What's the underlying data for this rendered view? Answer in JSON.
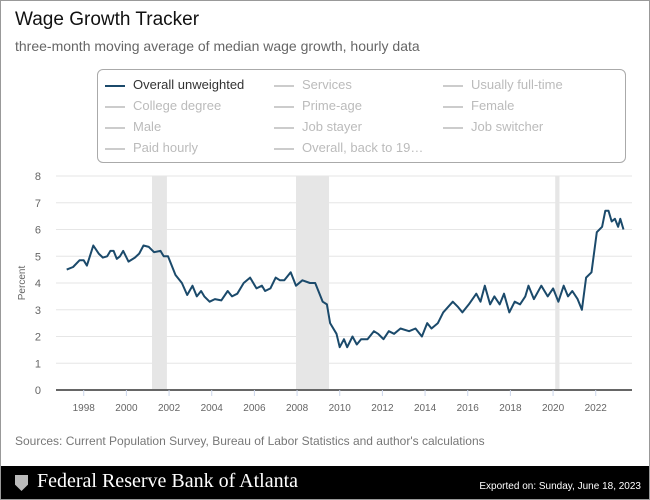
{
  "title": "Wage Growth Tracker",
  "subtitle": "three-month moving average of median wage growth, hourly data",
  "legend": [
    {
      "label": "Overall unweighted",
      "active": true
    },
    {
      "label": "Services",
      "active": false
    },
    {
      "label": "Usually full-time",
      "active": false
    },
    {
      "label": "College degree",
      "active": false
    },
    {
      "label": "Prime-age",
      "active": false
    },
    {
      "label": "Female",
      "active": false
    },
    {
      "label": "Male",
      "active": false
    },
    {
      "label": "Job stayer",
      "active": false
    },
    {
      "label": "Job switcher",
      "active": false
    },
    {
      "label": "Paid hourly",
      "active": false
    },
    {
      "label": "Overall, back to 19…",
      "active": false
    }
  ],
  "sources": "Sources: Current Population Survey, Bureau of Labor Statistics and author's calculations",
  "footer": {
    "logo": "Federal Reserve Bank of Atlanta",
    "exported": "Exported on: Sunday, June 18, 2023"
  },
  "chart_data": {
    "type": "line",
    "ylabel": "Percent",
    "ylim": [
      0,
      8
    ],
    "yticks": [
      "0",
      "1",
      "2",
      "3",
      "4",
      "5",
      "6",
      "7",
      "8"
    ],
    "xlim": [
      1996.7,
      2023.7
    ],
    "xticks": [
      "1998",
      "2000",
      "2002",
      "2004",
      "2006",
      "2008",
      "2010",
      "2012",
      "2014",
      "2016",
      "2018",
      "2020",
      "2022"
    ],
    "grid": true,
    "line_color": "#1b4a6b",
    "recessions": [
      [
        2001.2,
        2001.9
      ],
      [
        2007.95,
        2009.5
      ],
      [
        2020.1,
        2020.3
      ]
    ],
    "series": [
      {
        "name": "Overall unweighted",
        "points": [
          [
            1997.2,
            4.5
          ],
          [
            1997.5,
            4.6
          ],
          [
            1997.8,
            4.85
          ],
          [
            1998.0,
            4.85
          ],
          [
            1998.15,
            4.65
          ],
          [
            1998.45,
            5.4
          ],
          [
            1998.7,
            5.1
          ],
          [
            1998.9,
            4.95
          ],
          [
            1999.1,
            5.0
          ],
          [
            1999.25,
            5.2
          ],
          [
            1999.4,
            5.2
          ],
          [
            1999.55,
            4.9
          ],
          [
            1999.7,
            5.0
          ],
          [
            1999.85,
            5.2
          ],
          [
            2000.1,
            4.8
          ],
          [
            2000.4,
            4.95
          ],
          [
            2000.6,
            5.1
          ],
          [
            2000.8,
            5.4
          ],
          [
            2001.05,
            5.35
          ],
          [
            2001.3,
            5.15
          ],
          [
            2001.6,
            5.2
          ],
          [
            2001.75,
            5.0
          ],
          [
            2001.95,
            5.0
          ],
          [
            2002.15,
            4.6
          ],
          [
            2002.3,
            4.3
          ],
          [
            2002.6,
            4.0
          ],
          [
            2002.85,
            3.55
          ],
          [
            2003.1,
            3.9
          ],
          [
            2003.3,
            3.5
          ],
          [
            2003.5,
            3.7
          ],
          [
            2003.65,
            3.5
          ],
          [
            2003.9,
            3.3
          ],
          [
            2004.15,
            3.4
          ],
          [
            2004.45,
            3.35
          ],
          [
            2004.75,
            3.7
          ],
          [
            2004.95,
            3.5
          ],
          [
            2005.2,
            3.6
          ],
          [
            2005.5,
            4.0
          ],
          [
            2005.8,
            4.2
          ],
          [
            2006.1,
            3.8
          ],
          [
            2006.35,
            3.9
          ],
          [
            2006.5,
            3.7
          ],
          [
            2006.75,
            3.8
          ],
          [
            2007.0,
            4.2
          ],
          [
            2007.2,
            4.1
          ],
          [
            2007.4,
            4.1
          ],
          [
            2007.7,
            4.4
          ],
          [
            2007.95,
            3.9
          ],
          [
            2008.25,
            4.1
          ],
          [
            2008.6,
            4.0
          ],
          [
            2008.85,
            4.0
          ],
          [
            2009.0,
            3.7
          ],
          [
            2009.2,
            3.3
          ],
          [
            2009.4,
            3.2
          ],
          [
            2009.55,
            2.5
          ],
          [
            2009.85,
            2.1
          ],
          [
            2010.0,
            1.6
          ],
          [
            2010.2,
            1.9
          ],
          [
            2010.35,
            1.6
          ],
          [
            2010.6,
            2.0
          ],
          [
            2010.8,
            1.7
          ],
          [
            2011.0,
            1.9
          ],
          [
            2011.3,
            1.9
          ],
          [
            2011.6,
            2.2
          ],
          [
            2011.8,
            2.1
          ],
          [
            2012.05,
            1.9
          ],
          [
            2012.3,
            2.2
          ],
          [
            2012.55,
            2.1
          ],
          [
            2012.85,
            2.3
          ],
          [
            2013.25,
            2.2
          ],
          [
            2013.55,
            2.3
          ],
          [
            2013.85,
            2.0
          ],
          [
            2014.1,
            2.5
          ],
          [
            2014.3,
            2.3
          ],
          [
            2014.6,
            2.5
          ],
          [
            2014.85,
            2.9
          ],
          [
            2015.3,
            3.3
          ],
          [
            2015.55,
            3.1
          ],
          [
            2015.75,
            2.9
          ],
          [
            2016.05,
            3.2
          ],
          [
            2016.4,
            3.6
          ],
          [
            2016.6,
            3.3
          ],
          [
            2016.8,
            3.9
          ],
          [
            2017.05,
            3.2
          ],
          [
            2017.25,
            3.5
          ],
          [
            2017.5,
            3.2
          ],
          [
            2017.7,
            3.6
          ],
          [
            2017.95,
            2.9
          ],
          [
            2018.2,
            3.3
          ],
          [
            2018.45,
            3.2
          ],
          [
            2018.7,
            3.5
          ],
          [
            2018.85,
            3.9
          ],
          [
            2019.1,
            3.4
          ],
          [
            2019.45,
            3.9
          ],
          [
            2019.75,
            3.5
          ],
          [
            2020.0,
            3.8
          ],
          [
            2020.25,
            3.3
          ],
          [
            2020.5,
            3.9
          ],
          [
            2020.7,
            3.5
          ],
          [
            2020.9,
            3.7
          ],
          [
            2021.15,
            3.4
          ],
          [
            2021.35,
            3.0
          ],
          [
            2021.55,
            4.2
          ],
          [
            2021.8,
            4.4
          ],
          [
            2022.05,
            5.9
          ],
          [
            2022.3,
            6.1
          ],
          [
            2022.45,
            6.7
          ],
          [
            2022.6,
            6.7
          ],
          [
            2022.75,
            6.3
          ],
          [
            2022.9,
            6.4
          ],
          [
            2023.05,
            6.1
          ],
          [
            2023.15,
            6.4
          ],
          [
            2023.3,
            6.0
          ]
        ]
      }
    ]
  }
}
